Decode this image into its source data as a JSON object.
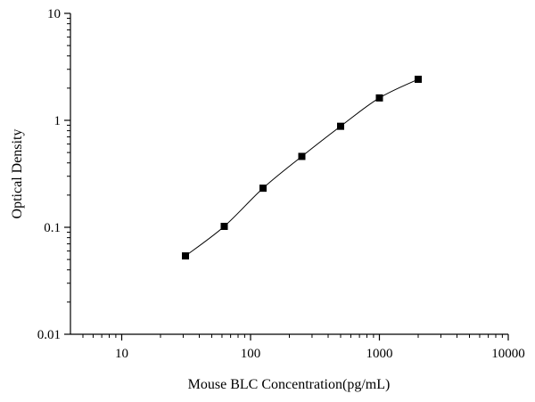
{
  "chart_data": {
    "type": "scatter",
    "xlabel": "Mouse BLC Concentration(pg/mL)",
    "ylabel": "Optical Density",
    "xscale": "log",
    "yscale": "log",
    "xlim": [
      4,
      10000
    ],
    "ylim": [
      0.01,
      10
    ],
    "xticks": [
      {
        "value": 10,
        "label": "10"
      },
      {
        "value": 100,
        "label": "100"
      },
      {
        "value": 1000,
        "label": "1000"
      },
      {
        "value": 10000,
        "label": "10000"
      }
    ],
    "yticks": [
      {
        "value": 0.01,
        "label": "0.01"
      },
      {
        "value": 0.1,
        "label": "0.1"
      },
      {
        "value": 1,
        "label": "1"
      },
      {
        "value": 10,
        "label": "10"
      }
    ],
    "grid": false,
    "legend": "none",
    "series": [
      {
        "marker": "square",
        "color": "#000000",
        "points": [
          {
            "x": 31.25,
            "y": 0.054
          },
          {
            "x": 62.5,
            "y": 0.102
          },
          {
            "x": 125,
            "y": 0.232
          },
          {
            "x": 250,
            "y": 0.46
          },
          {
            "x": 500,
            "y": 0.88
          },
          {
            "x": 1000,
            "y": 1.62
          },
          {
            "x": 2000,
            "y": 2.42
          }
        ]
      }
    ]
  }
}
